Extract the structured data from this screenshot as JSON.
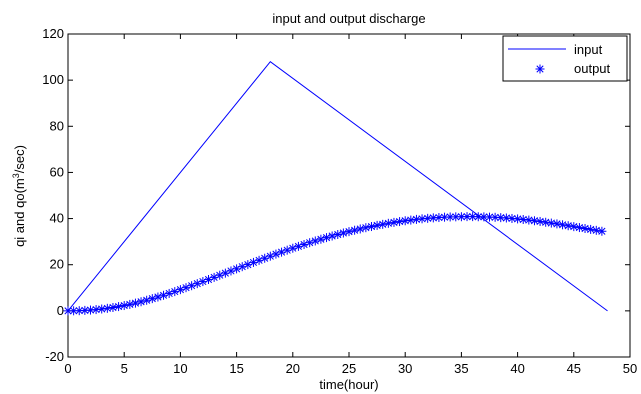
{
  "chart_data": {
    "type": "line",
    "title": "input and output discharge",
    "xlabel": "time(hour)",
    "ylabel_prefix": "qi and qo(m",
    "ylabel_sup": "3",
    "ylabel_suffix": "/sec)",
    "xlim": [
      0,
      50
    ],
    "ylim": [
      -20,
      120
    ],
    "xticks": [
      0,
      5,
      10,
      15,
      20,
      25,
      30,
      35,
      40,
      45,
      50
    ],
    "yticks": [
      -20,
      0,
      20,
      40,
      60,
      80,
      100,
      120
    ],
    "grid": false,
    "legend_position": "top-right",
    "series": [
      {
        "name": "input",
        "style": "line",
        "color": "#0000ff",
        "x": [
          0,
          18,
          48
        ],
        "y": [
          0,
          108,
          0
        ]
      },
      {
        "name": "output",
        "style": "star-markers",
        "color": "#0000ff",
        "x": [
          0,
          0.5,
          1,
          1.5,
          2,
          2.5,
          3,
          3.5,
          4,
          4.5,
          5,
          5.5,
          6,
          6.5,
          7,
          7.5,
          8,
          8.5,
          9,
          9.5,
          10,
          10.5,
          11,
          11.5,
          12,
          12.5,
          13,
          13.5,
          14,
          14.5,
          15,
          15.5,
          16,
          16.5,
          17,
          17.5,
          18,
          18.5,
          19,
          19.5,
          20,
          20.5,
          21,
          21.5,
          22,
          22.5,
          23,
          23.5,
          24,
          24.5,
          25,
          25.5,
          26,
          26.5,
          27,
          27.5,
          28,
          28.5,
          29,
          29.5,
          30,
          30.5,
          31,
          31.5,
          32,
          32.5,
          33,
          33.5,
          34,
          34.5,
          35,
          35.5,
          36,
          36.5,
          37,
          37.5,
          38,
          38.5,
          39,
          39.5,
          40,
          40.5,
          41,
          41.5,
          42,
          42.5,
          43,
          43.5,
          44,
          44.5,
          45,
          45.5,
          46,
          46.5,
          47,
          47.5
        ],
        "y": [
          0,
          0.02,
          0.08,
          0.2,
          0.35,
          0.55,
          0.8,
          1.1,
          1.45,
          1.85,
          2.3,
          2.8,
          3.35,
          3.95,
          4.6,
          5.3,
          6,
          6.75,
          7.55,
          8.35,
          9.2,
          10.05,
          10.9,
          11.8,
          12.7,
          13.6,
          14.5,
          15.45,
          16.35,
          17.3,
          18.2,
          19.15,
          20.05,
          21,
          21.9,
          22.8,
          23.7,
          24.6,
          25.45,
          26.3,
          27.15,
          27.95,
          28.75,
          29.55,
          30.3,
          31.05,
          31.75,
          32.45,
          33.1,
          33.75,
          34.35,
          34.95,
          35.5,
          36.05,
          36.55,
          37.05,
          37.5,
          37.95,
          38.35,
          38.7,
          39.05,
          39.35,
          39.65,
          39.9,
          40.1,
          40.3,
          40.45,
          40.6,
          40.7,
          40.75,
          40.8,
          40.85,
          40.85,
          40.8,
          40.75,
          40.65,
          40.55,
          40.4,
          40.25,
          40.05,
          39.85,
          39.6,
          39.35,
          39.05,
          38.75,
          38.4,
          38.05,
          37.7,
          37.3,
          36.9,
          36.5,
          36.1,
          35.7,
          35.3,
          34.9,
          34.5
        ]
      }
    ]
  }
}
